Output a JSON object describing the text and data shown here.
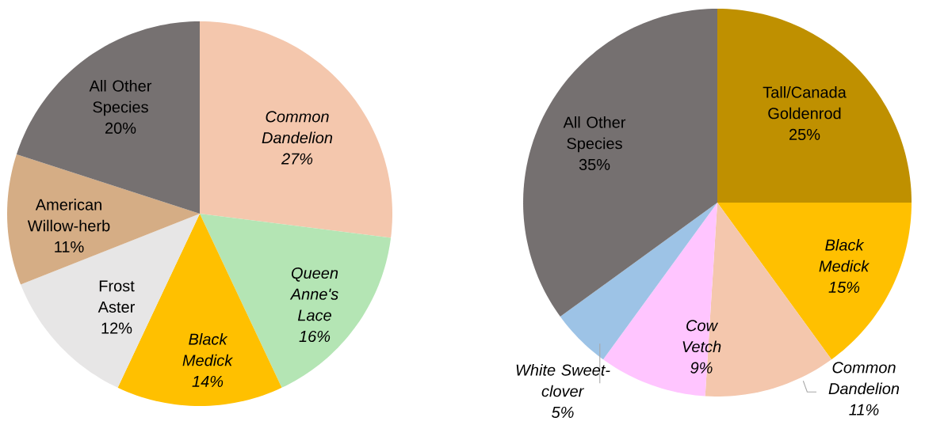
{
  "chart_data": [
    {
      "type": "pie",
      "categories": [
        "*Common Dandelion*",
        "*Queen Anne's Lace*",
        "*Black Medick*",
        "Frost Aster",
        "American Willow-herb",
        "All Other Species"
      ],
      "values": [
        27,
        16,
        14,
        12,
        11,
        20
      ],
      "value_labels": [
        "*27%*",
        "*16%*",
        "*14%*",
        "12%",
        "11%",
        "20%"
      ],
      "colors": [
        "#f4c7ad",
        "#b4e5b4",
        "#ffc000",
        "#e7e6e6",
        "#d5ad85",
        "#767171"
      ]
    },
    {
      "type": "pie",
      "categories": [
        "Tall/Canada Goldenrod",
        "*Black Medick*",
        "*Common Dandelion*",
        "*Cow Vetch*",
        "*White Sweet-clover*",
        "All Other Species"
      ],
      "values": [
        25,
        15,
        11,
        9,
        5,
        35
      ],
      "value_labels": [
        "25%",
        "*15%*",
        "*11%*",
        "*9%*",
        "*5%*",
        "35%"
      ],
      "colors": [
        "#bf9000",
        "#ffc000",
        "#f4c7ad",
        "#ffc5ff",
        "#9dc3e6",
        "#757070"
      ]
    }
  ]
}
